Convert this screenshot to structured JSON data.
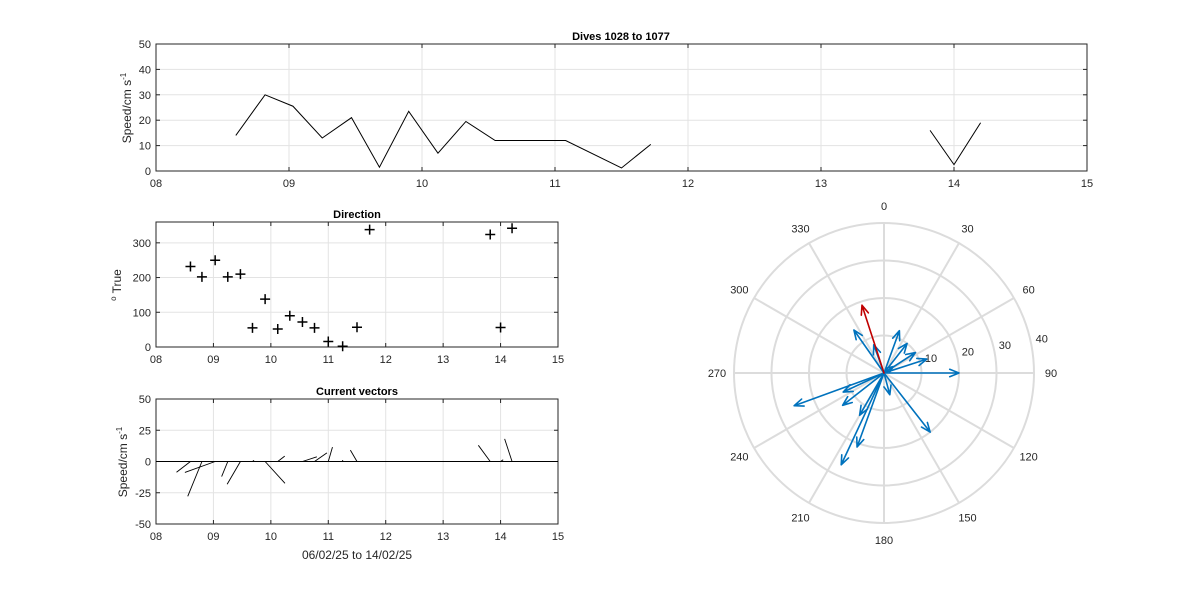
{
  "chart_data": [
    {
      "id": "speed",
      "type": "line",
      "title": "Dives 1028 to 1077",
      "ylabel": "Speed/cm s",
      "ylabel_sup": "-1",
      "xlim": [
        8,
        15
      ],
      "ylim": [
        0,
        50
      ],
      "xticks": [
        8,
        9,
        10,
        11,
        12,
        13,
        14,
        15
      ],
      "xtick_labels": [
        "08",
        "09",
        "10",
        "11",
        "12",
        "13",
        "14",
        "15"
      ],
      "yticks": [
        0,
        10,
        20,
        30,
        40,
        50
      ],
      "grid": true,
      "series": [
        {
          "x": [
            8.6,
            8.82,
            9.03,
            9.25,
            9.47,
            9.68,
            9.9,
            10.12,
            10.33,
            10.55,
            10.76,
            11.08,
            11.5,
            11.72
          ],
          "y": [
            14,
            30,
            25.5,
            13,
            21,
            1.5,
            23.5,
            7,
            19.5,
            12,
            12,
            12,
            1.2,
            10.5
          ]
        },
        {
          "x": [
            13.82,
            14.0,
            14.2
          ],
          "y": [
            16,
            2.5,
            19
          ]
        }
      ]
    },
    {
      "id": "direction",
      "type": "scatter",
      "title": "Direction",
      "ylabel": "True",
      "ylabel_sup": "o",
      "xlim": [
        8,
        15
      ],
      "ylim": [
        0,
        360
      ],
      "xticks": [
        8,
        9,
        10,
        11,
        12,
        13,
        14,
        15
      ],
      "xtick_labels": [
        "08",
        "09",
        "10",
        "11",
        "12",
        "13",
        "14",
        "15"
      ],
      "yticks": [
        0,
        100,
        200,
        300
      ],
      "grid": true,
      "marker": "+",
      "x": [
        8.6,
        8.8,
        9.03,
        9.25,
        9.47,
        9.68,
        9.9,
        10.12,
        10.33,
        10.55,
        10.76,
        11.0,
        11.25,
        11.5,
        11.72,
        13.82,
        14.0,
        14.2
      ],
      "y": [
        232,
        202,
        250,
        202,
        210,
        55,
        138,
        52,
        90,
        72,
        55,
        16,
        2,
        57,
        338,
        324,
        56,
        342
      ]
    },
    {
      "id": "vectors",
      "type": "line",
      "title": "Current vectors",
      "ylabel": "Speed/cm s",
      "ylabel_sup": "-1",
      "xlabel": "06/02/25 to 14/02/25",
      "xlim": [
        8,
        15
      ],
      "ylim": [
        -50,
        50
      ],
      "xticks": [
        8,
        9,
        10,
        11,
        12,
        13,
        14,
        15
      ],
      "xtick_labels": [
        "08",
        "09",
        "10",
        "11",
        "12",
        "13",
        "14",
        "15"
      ],
      "yticks": [
        -50,
        -25,
        0,
        25,
        50
      ],
      "grid": true,
      "baseline": 0,
      "sticks": [
        {
          "x": 8.6,
          "dir": 232,
          "speed": 14
        },
        {
          "x": 8.8,
          "dir": 202,
          "speed": 30
        },
        {
          "x": 9.03,
          "dir": 250,
          "speed": 25.5
        },
        {
          "x": 9.25,
          "dir": 202,
          "speed": 13
        },
        {
          "x": 9.47,
          "dir": 210,
          "speed": 21
        },
        {
          "x": 9.68,
          "dir": 55,
          "speed": 1.5
        },
        {
          "x": 9.9,
          "dir": 138,
          "speed": 23.5
        },
        {
          "x": 10.12,
          "dir": 52,
          "speed": 7
        },
        {
          "x": 10.33,
          "dir": 90,
          "speed": 19.5
        },
        {
          "x": 10.55,
          "dir": 72,
          "speed": 12
        },
        {
          "x": 10.76,
          "dir": 55,
          "speed": 12
        },
        {
          "x": 11.0,
          "dir": 16,
          "speed": 12
        },
        {
          "x": 11.25,
          "dir": 2,
          "speed": 1.2
        },
        {
          "x": 11.5,
          "dir": 330,
          "speed": 10.5
        },
        {
          "x": 13.82,
          "dir": 324,
          "speed": 16
        },
        {
          "x": 14.0,
          "dir": 56,
          "speed": 2.5
        },
        {
          "x": 14.2,
          "dir": 342,
          "speed": 19
        }
      ]
    },
    {
      "id": "compass",
      "type": "polar",
      "rlim": [
        0,
        40
      ],
      "rticks": [
        10,
        20,
        30,
        40
      ],
      "angle_ticks": [
        0,
        30,
        60,
        90,
        120,
        150,
        180,
        210,
        240,
        270,
        300,
        330
      ],
      "zero": "top",
      "direction": "clockwise",
      "series_color": "#0072bd",
      "highlight_color": "#c00000",
      "arrows": [
        {
          "dir": 90,
          "speed": 20
        },
        {
          "dir": 142,
          "speed": 20
        },
        {
          "dir": 205,
          "speed": 27
        },
        {
          "dir": 250,
          "speed": 25.5
        },
        {
          "dir": 200,
          "speed": 21
        },
        {
          "dir": 232,
          "speed": 14
        },
        {
          "dir": 245,
          "speed": 12
        },
        {
          "dir": 210,
          "speed": 13
        },
        {
          "dir": 325,
          "speed": 14
        },
        {
          "dir": 20,
          "speed": 12
        },
        {
          "dir": 38,
          "speed": 10
        },
        {
          "dir": 57,
          "speed": 10
        },
        {
          "dir": 72,
          "speed": 12
        },
        {
          "dir": 55,
          "speed": 3
        },
        {
          "dir": 340,
          "speed": 8
        },
        {
          "dir": 165,
          "speed": 6
        },
        {
          "dir": 342,
          "speed": 19,
          "highlight": true
        }
      ]
    }
  ]
}
